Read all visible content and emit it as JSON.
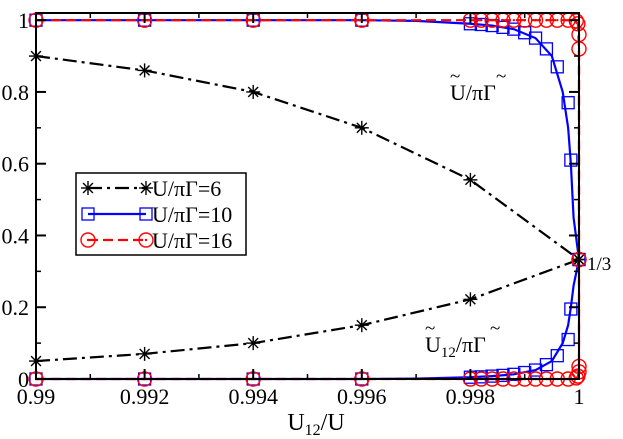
{
  "chart_data": {
    "type": "line",
    "xlabel_main": "U",
    "xlabel_sub": "12",
    "xlabel_rest": "/U",
    "xlim": [
      0.99,
      1.0
    ],
    "ylim": [
      0,
      1.02
    ],
    "xticks": [
      0.99,
      0.992,
      0.994,
      0.996,
      0.998,
      1
    ],
    "xtick_labels": [
      "0.99",
      "0.992",
      "0.994",
      "0.996",
      "0.998",
      "1"
    ],
    "yticks": [
      0,
      0.2,
      0.4,
      0.6,
      0.8,
      1
    ],
    "ytick_labels": [
      "0",
      "0.2",
      "0.4",
      "0.6",
      "0.8",
      "1"
    ],
    "grid": false,
    "legend_position": "center-left",
    "annotations": {
      "third": "1/3",
      "upper_curve": {
        "main": "U",
        "rest": "/πΓ"
      },
      "lower_curve": {
        "main": "U",
        "sub": "12",
        "rest": "/πΓ"
      }
    },
    "series": [
      {
        "name": "U/πΓ=6",
        "color": "#000000",
        "marker": "star",
        "linestyle": "dashdot",
        "upper": {
          "x": [
            0.99,
            0.992,
            0.994,
            0.996,
            0.998,
            1.0
          ],
          "y": [
            0.9,
            0.86,
            0.8,
            0.7,
            0.555,
            0.333
          ]
        },
        "lower": {
          "x": [
            0.99,
            0.992,
            0.994,
            0.996,
            0.998,
            1.0
          ],
          "y": [
            0.05,
            0.07,
            0.1,
            0.15,
            0.222,
            0.333
          ]
        },
        "upper_markers": [
          [
            0.99,
            0.9
          ],
          [
            0.992,
            0.86
          ],
          [
            0.994,
            0.8
          ],
          [
            0.996,
            0.7
          ],
          [
            0.998,
            0.555
          ],
          [
            1.0,
            0.333
          ]
        ],
        "lower_markers": [
          [
            0.99,
            0.05
          ],
          [
            0.992,
            0.07
          ],
          [
            0.994,
            0.1
          ],
          [
            0.996,
            0.15
          ],
          [
            0.998,
            0.222
          ],
          [
            1.0,
            0.333
          ]
        ]
      },
      {
        "name": "U/πΓ=10",
        "color": "#0000ff",
        "marker": "square",
        "linestyle": "solid",
        "upper": {
          "x": [
            0.99,
            0.992,
            0.994,
            0.996,
            0.997,
            0.998,
            0.9984,
            0.9988,
            0.9992,
            0.9995,
            0.9997,
            0.9998,
            0.99985,
            0.9999,
            1.0
          ],
          "y": [
            1.0,
            1.0,
            1.0,
            1.0,
            0.998,
            0.99,
            0.985,
            0.975,
            0.95,
            0.9,
            0.8,
            0.7,
            0.6,
            0.45,
            0.333
          ]
        },
        "lower": {
          "x": [
            0.99,
            0.992,
            0.994,
            0.996,
            0.997,
            0.998,
            0.9984,
            0.9988,
            0.9992,
            0.9995,
            0.9997,
            0.9998,
            0.99985,
            0.9999,
            1.0
          ],
          "y": [
            0.0,
            0.0,
            0.0,
            0.0,
            0.001,
            0.005,
            0.008,
            0.013,
            0.025,
            0.05,
            0.1,
            0.15,
            0.2,
            0.26,
            0.333
          ]
        },
        "upper_markers": [
          [
            0.99,
            1.0
          ],
          [
            0.992,
            1.0
          ],
          [
            0.994,
            1.0
          ],
          [
            0.996,
            1.0
          ],
          [
            0.998,
            0.99
          ],
          [
            0.9982,
            0.988
          ],
          [
            0.9984,
            0.985
          ],
          [
            0.9986,
            0.98
          ],
          [
            0.9988,
            0.975
          ],
          [
            0.999,
            0.965
          ],
          [
            0.9992,
            0.95
          ],
          [
            0.9994,
            0.92
          ],
          [
            0.9996,
            0.87
          ],
          [
            0.9998,
            0.77
          ],
          [
            0.99985,
            0.61
          ],
          [
            1.0,
            0.333
          ]
        ],
        "lower_markers": [
          [
            0.99,
            0.0
          ],
          [
            0.992,
            0.0
          ],
          [
            0.994,
            0.0
          ],
          [
            0.996,
            0.0
          ],
          [
            0.998,
            0.005
          ],
          [
            0.9982,
            0.006
          ],
          [
            0.9984,
            0.008
          ],
          [
            0.9986,
            0.01
          ],
          [
            0.9988,
            0.013
          ],
          [
            0.999,
            0.018
          ],
          [
            0.9992,
            0.025
          ],
          [
            0.9994,
            0.04
          ],
          [
            0.9996,
            0.065
          ],
          [
            0.9998,
            0.11
          ],
          [
            0.99985,
            0.195
          ],
          [
            1.0,
            0.333
          ]
        ]
      },
      {
        "name": "U/πΓ=16",
        "color": "#ff0000",
        "marker": "circle",
        "linestyle": "dashed",
        "upper": {
          "x": [
            0.99,
            0.992,
            0.994,
            0.996,
            0.998,
            0.9995,
            0.9999,
            0.99998,
            1.0,
            1.0
          ],
          "y": [
            1.0,
            1.0,
            1.0,
            1.0,
            1.0,
            1.0,
            1.0,
            0.99,
            0.92,
            0.333
          ]
        },
        "lower": {
          "x": [
            0.99,
            0.992,
            0.994,
            0.996,
            0.998,
            0.9995,
            0.9999,
            0.99998,
            1.0,
            1.0
          ],
          "y": [
            0.0,
            0.0,
            0.0,
            0.0,
            0.0,
            0.0,
            0.0,
            0.005,
            0.035,
            0.333
          ]
        },
        "upper_markers": [
          [
            0.99,
            1.0
          ],
          [
            0.992,
            1.0
          ],
          [
            0.994,
            1.0
          ],
          [
            0.996,
            1.0
          ],
          [
            0.998,
            1.0
          ],
          [
            0.9982,
            1.0
          ],
          [
            0.9984,
            1.0
          ],
          [
            0.9986,
            1.0
          ],
          [
            0.9988,
            1.0
          ],
          [
            0.999,
            1.0
          ],
          [
            0.9992,
            1.0
          ],
          [
            0.9994,
            1.0
          ],
          [
            0.9996,
            1.0
          ],
          [
            0.9998,
            1.0
          ],
          [
            0.99995,
            0.998
          ],
          [
            0.99998,
            0.99
          ],
          [
            1.0,
            0.96
          ],
          [
            1.0,
            0.92
          ],
          [
            1.0,
            0.333
          ]
        ],
        "lower_markers": [
          [
            0.99,
            0.0
          ],
          [
            0.992,
            0.0
          ],
          [
            0.994,
            0.0
          ],
          [
            0.996,
            0.0
          ],
          [
            0.998,
            0.0
          ],
          [
            0.9982,
            0.0
          ],
          [
            0.9984,
            0.0
          ],
          [
            0.9986,
            0.0
          ],
          [
            0.9988,
            0.0
          ],
          [
            0.999,
            0.0
          ],
          [
            0.9992,
            0.0
          ],
          [
            0.9994,
            0.0
          ],
          [
            0.9996,
            0.0
          ],
          [
            0.9998,
            0.0
          ],
          [
            0.99995,
            0.003
          ],
          [
            0.99998,
            0.008
          ],
          [
            1.0,
            0.02
          ],
          [
            1.0,
            0.035
          ],
          [
            1.0,
            0.333
          ]
        ]
      }
    ]
  }
}
